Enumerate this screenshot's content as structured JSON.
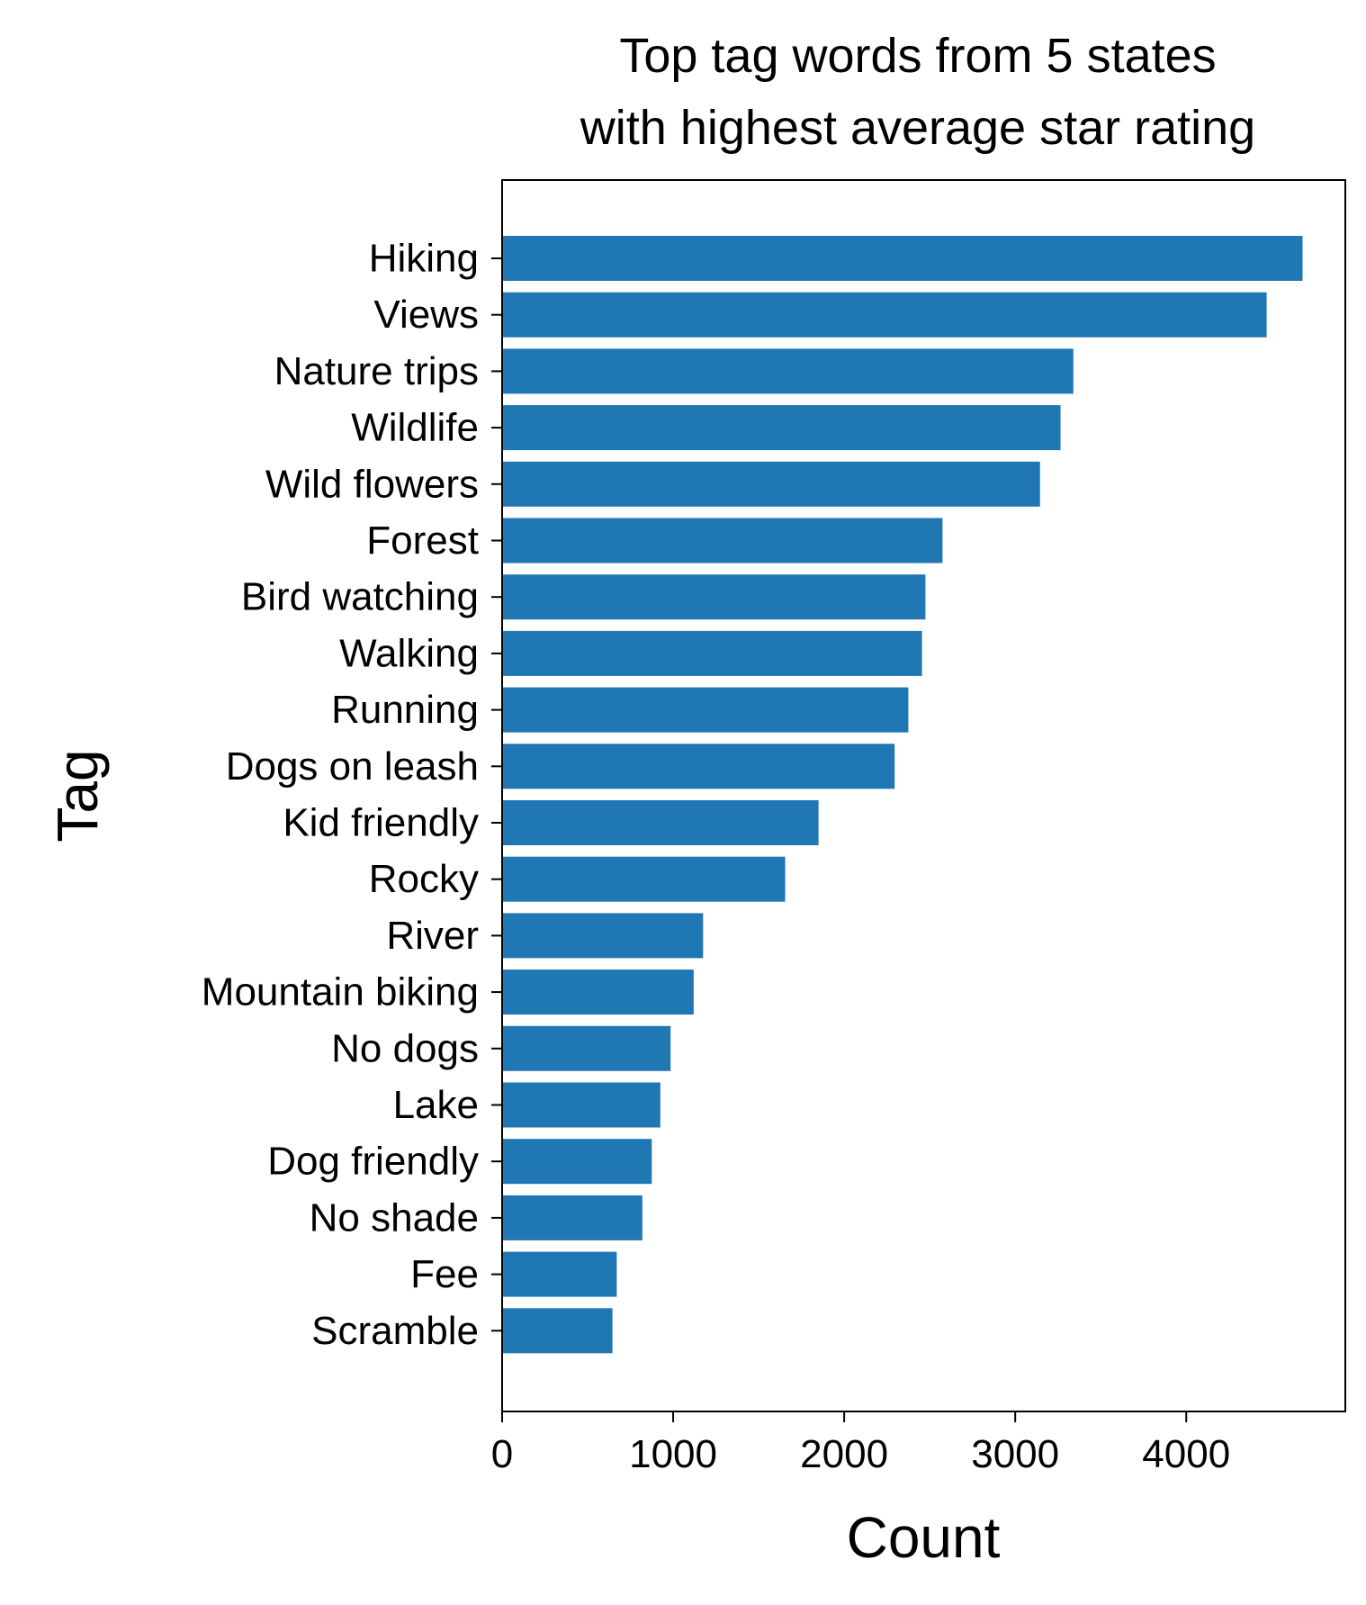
{
  "chart_data": {
    "type": "bar",
    "orientation": "horizontal",
    "title_lines": [
      "Top tag words from 5 states",
      "with highest average star rating"
    ],
    "xlabel": "Count",
    "ylabel": "Tag",
    "xlim": [
      0,
      4930
    ],
    "xticks": [
      0,
      1000,
      2000,
      3000,
      4000
    ],
    "xtick_labels": [
      "0",
      "1000",
      "2000",
      "3000",
      "4000"
    ],
    "grid": false,
    "bar_color": "#1f77b4",
    "categories": [
      "Hiking",
      "Views",
      "Nature trips",
      "Wildlife",
      "Wild flowers",
      "Forest",
      "Bird watching",
      "Walking",
      "Running",
      "Dogs on leash",
      "Kid friendly",
      "Rocky",
      "River",
      "Mountain biking",
      "No dogs",
      "Lake",
      "Dog friendly",
      "No shade",
      "Fee",
      "Scramble"
    ],
    "values": [
      4680,
      4470,
      3340,
      3265,
      3145,
      2575,
      2475,
      2455,
      2375,
      2295,
      1850,
      1655,
      1175,
      1120,
      985,
      925,
      875,
      820,
      670,
      645
    ]
  }
}
